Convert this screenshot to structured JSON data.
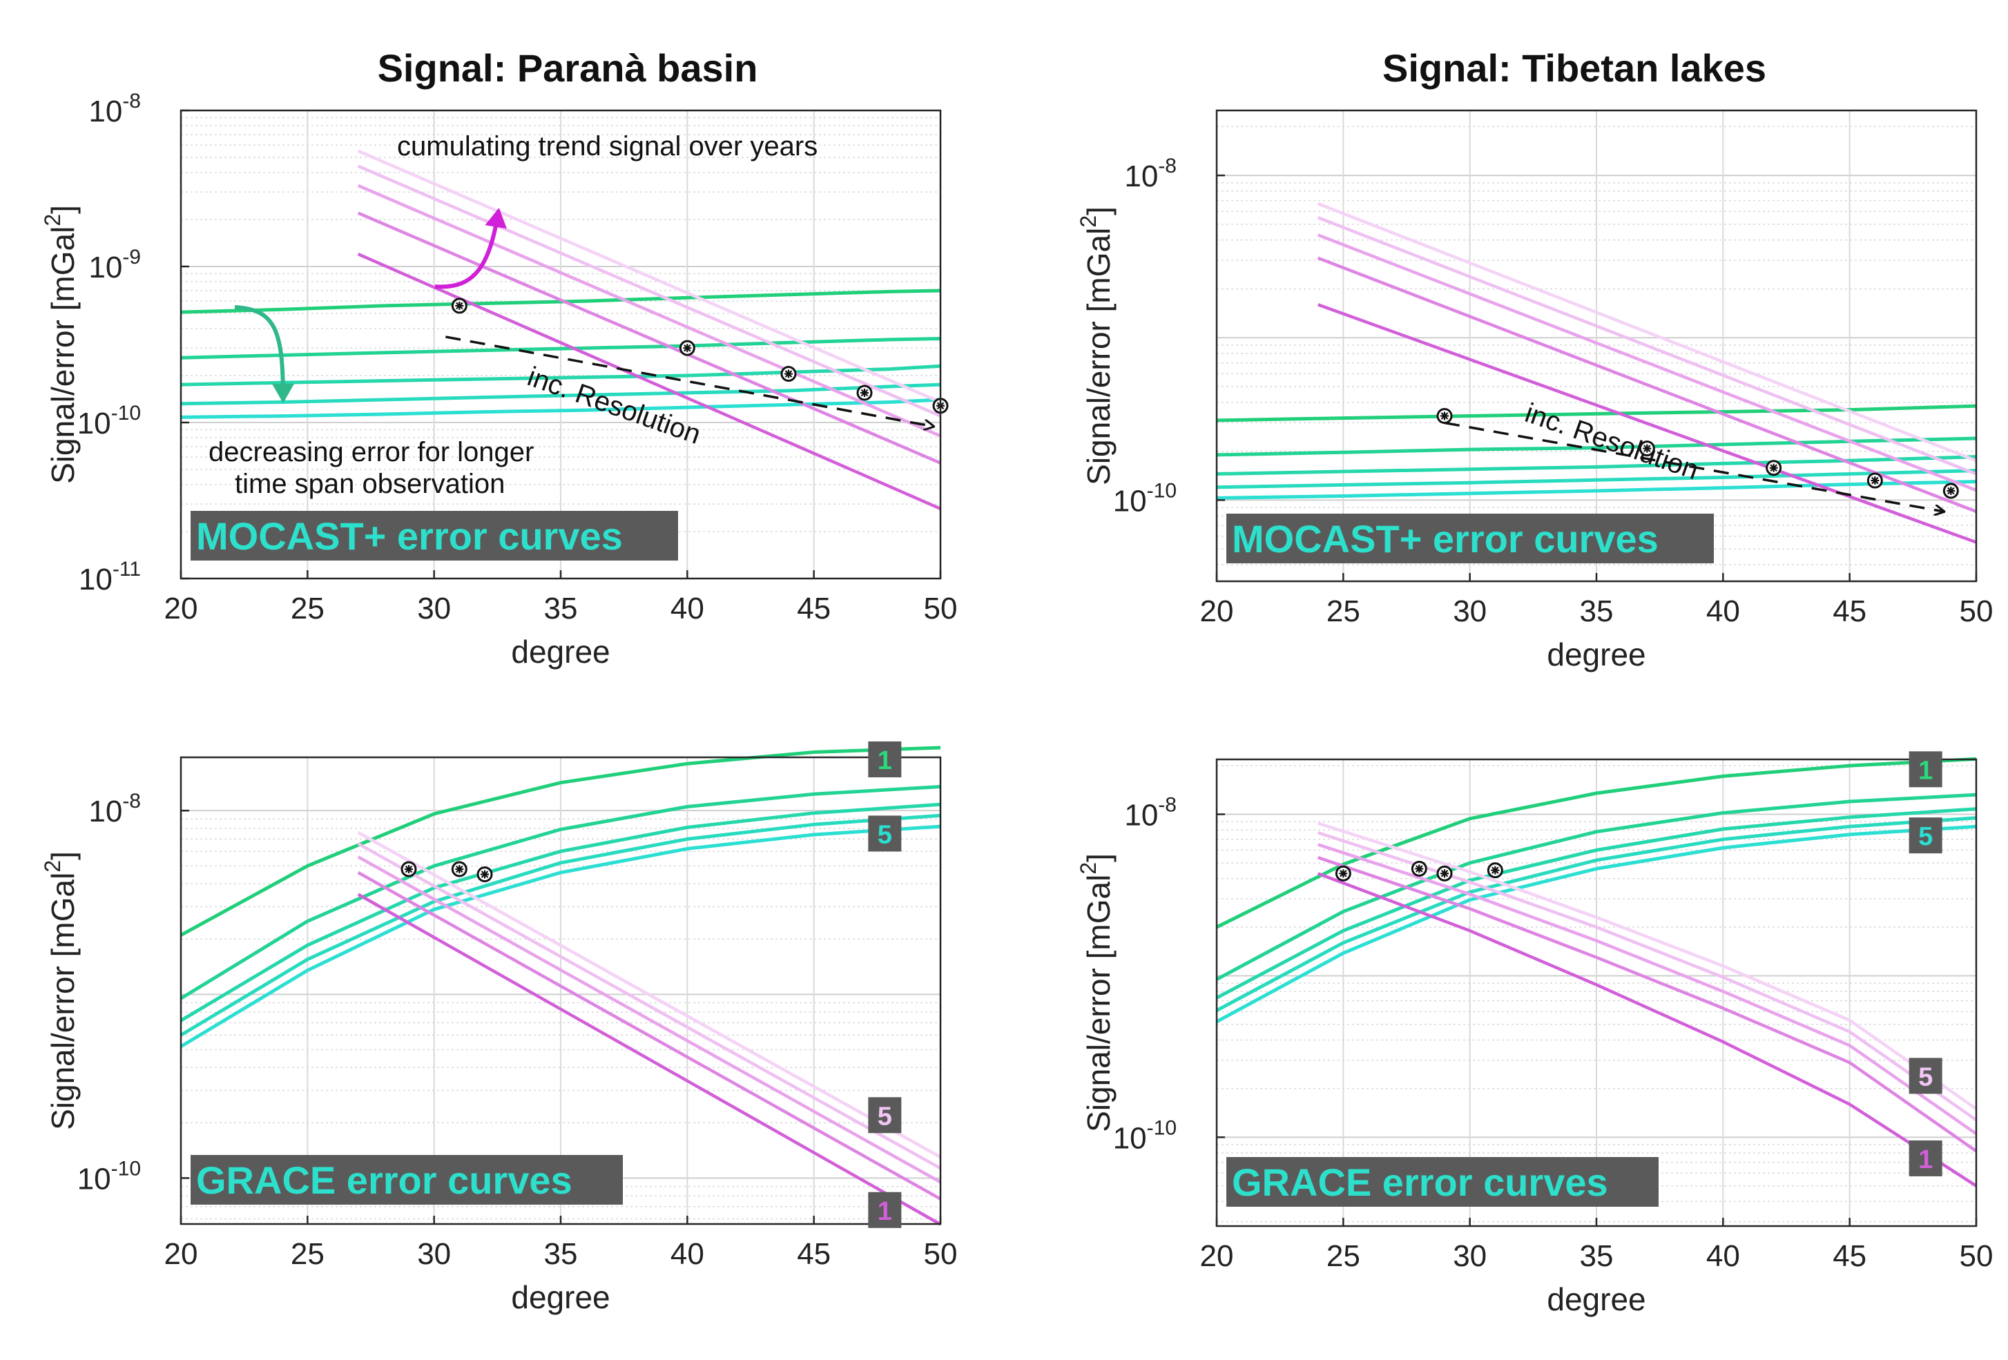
{
  "colors": {
    "signal": [
      "#d25fd9",
      "#de84e3",
      "#e8a3ec",
      "#efc0f2",
      "#f4d3f6"
    ],
    "error": [
      "#21cf7a",
      "#23d394",
      "#26d7ab",
      "#28dbbf",
      "#2bdfd2"
    ],
    "badge_bg": "#5a5a5a",
    "label_box_bg": "#5a5a5a",
    "label_box_text": "#2de0cc",
    "arrow_green": "#2fb88a",
    "arrow_magenta": "#d020d8"
  },
  "chart_data": [
    {
      "id": "mocast-parana",
      "type": "line",
      "title": "Signal: Paranà basin",
      "xlabel": "degree",
      "ylabel": "Signal/error [mGal",
      "ylabel_sup": "2",
      "ylabel_close": "]",
      "yscale": "log",
      "xlim": [
        20,
        50
      ],
      "ylim_exp": [
        -11,
        -8
      ],
      "xticks": [
        20,
        25,
        30,
        35,
        40,
        45,
        50
      ],
      "yticks": [
        {
          "base": "10",
          "exp": "-8"
        },
        {
          "base": "10",
          "exp": "-9"
        },
        {
          "base": "10",
          "exp": "-10"
        },
        {
          "base": "10",
          "exp": "-11"
        }
      ],
      "ytick_values": [
        1e-08,
        1e-09,
        1e-10,
        1e-11
      ],
      "box_label": "MOCAST+ error curves",
      "signal_series": [
        {
          "name": "signal 1",
          "x": [
            27,
            50
          ],
          "y": [
            1.2e-09,
            2.8e-11
          ]
        },
        {
          "name": "signal 2",
          "x": [
            27,
            50
          ],
          "y": [
            2.2e-09,
            5.5e-11
          ]
        },
        {
          "name": "signal 3",
          "x": [
            27,
            50
          ],
          "y": [
            3.3e-09,
            8.2e-11
          ]
        },
        {
          "name": "signal 4",
          "x": [
            27,
            50
          ],
          "y": [
            4.4e-09,
            1.1e-10
          ]
        },
        {
          "name": "signal 5",
          "x": [
            27,
            50
          ],
          "y": [
            5.5e-09,
            1.35e-10
          ]
        }
      ],
      "error_series": [
        {
          "name": "error 1",
          "x": [
            20,
            24,
            28,
            32,
            36,
            40,
            44,
            48,
            50
          ],
          "y": [
            5.1e-10,
            5.3e-10,
            5.6e-10,
            5.8e-10,
            6e-10,
            6.3e-10,
            6.6e-10,
            6.9e-10,
            7e-10
          ]
        },
        {
          "name": "error 2",
          "x": [
            20,
            24,
            28,
            32,
            36,
            40,
            44,
            48,
            50
          ],
          "y": [
            2.6e-10,
            2.7e-10,
            2.8e-10,
            2.9e-10,
            3e-10,
            3.1e-10,
            3.25e-10,
            3.4e-10,
            3.45e-10
          ]
        },
        {
          "name": "error 3",
          "x": [
            20,
            24,
            28,
            32,
            36,
            40,
            44,
            48,
            50
          ],
          "y": [
            1.75e-10,
            1.8e-10,
            1.85e-10,
            1.9e-10,
            1.95e-10,
            2e-10,
            2.1e-10,
            2.2e-10,
            2.3e-10
          ]
        },
        {
          "name": "error 4",
          "x": [
            20,
            24,
            28,
            32,
            36,
            40,
            44,
            48,
            50
          ],
          "y": [
            1.32e-10,
            1.35e-10,
            1.4e-10,
            1.45e-10,
            1.5e-10,
            1.55e-10,
            1.6e-10,
            1.7e-10,
            1.75e-10
          ]
        },
        {
          "name": "error 5",
          "x": [
            20,
            24,
            28,
            32,
            36,
            40,
            44,
            48,
            50
          ],
          "y": [
            1.08e-10,
            1.1e-10,
            1.13e-10,
            1.17e-10,
            1.2e-10,
            1.25e-10,
            1.3e-10,
            1.35e-10,
            1.4e-10
          ]
        }
      ],
      "markers": [
        {
          "x": 31,
          "y": 5.6e-10
        },
        {
          "x": 40,
          "y": 3e-10
        },
        {
          "x": 44,
          "y": 2.05e-10
        },
        {
          "x": 47,
          "y": 1.55e-10
        },
        {
          "x": 50,
          "y": 1.28e-10
        }
      ],
      "annotations": {
        "signal_note": "cumulating trend signal over years",
        "error_note_1": "decreasing error for longer",
        "error_note_2": "time span observation",
        "resolution_note": "inc. Resolution"
      }
    },
    {
      "id": "mocast-tibet",
      "type": "line",
      "title": "Signal: Tibetan lakes",
      "xlabel": "degree",
      "ylabel": "Signal/error [mGal",
      "ylabel_sup": "2",
      "ylabel_close": "]",
      "yscale": "log",
      "xlim": [
        20,
        50
      ],
      "ylim_exp": [
        -10.5,
        -7.6
      ],
      "xticks": [
        20,
        25,
        30,
        35,
        40,
        45,
        50
      ],
      "yticks": [
        {
          "base": "10",
          "exp": "-8"
        },
        {
          "base": "10",
          "exp": "-10"
        }
      ],
      "ytick_values": [
        1e-08,
        1e-10
      ],
      "box_label": "MOCAST+ error curves",
      "signal_series": [
        {
          "name": "signal 1",
          "x": [
            24,
            50
          ],
          "y": [
            1.6e-09,
            5.5e-11
          ]
        },
        {
          "name": "signal 2",
          "x": [
            24,
            50
          ],
          "y": [
            3.1e-09,
            8.5e-11
          ]
        },
        {
          "name": "signal 3",
          "x": [
            24,
            50
          ],
          "y": [
            4.3e-09,
            1.15e-10
          ]
        },
        {
          "name": "signal 4",
          "x": [
            24,
            50
          ],
          "y": [
            5.5e-09,
            1.45e-10
          ]
        },
        {
          "name": "signal 5",
          "x": [
            24,
            50
          ],
          "y": [
            6.7e-09,
            1.75e-10
          ]
        }
      ],
      "error_series": [
        {
          "name": "error 1",
          "x": [
            20,
            25,
            30,
            35,
            40,
            45,
            50
          ],
          "y": [
            3.1e-10,
            3.2e-10,
            3.3e-10,
            3.4e-10,
            3.5e-10,
            3.6e-10,
            3.8e-10
          ]
        },
        {
          "name": "error 2",
          "x": [
            20,
            25,
            30,
            35,
            40,
            45,
            50
          ],
          "y": [
            1.9e-10,
            1.97e-10,
            2.05e-10,
            2.1e-10,
            2.2e-10,
            2.3e-10,
            2.4e-10
          ]
        },
        {
          "name": "error 3",
          "x": [
            20,
            25,
            30,
            35,
            40,
            45,
            50
          ],
          "y": [
            1.45e-10,
            1.5e-10,
            1.55e-10,
            1.6e-10,
            1.68e-10,
            1.75e-10,
            1.85e-10
          ]
        },
        {
          "name": "error 4",
          "x": [
            20,
            25,
            30,
            35,
            40,
            45,
            50
          ],
          "y": [
            1.2e-10,
            1.24e-10,
            1.28e-10,
            1.33e-10,
            1.38e-10,
            1.45e-10,
            1.52e-10
          ]
        },
        {
          "name": "error 5",
          "x": [
            20,
            25,
            30,
            35,
            40,
            45,
            50
          ],
          "y": [
            1.03e-10,
            1.06e-10,
            1.1e-10,
            1.14e-10,
            1.19e-10,
            1.25e-10,
            1.3e-10
          ]
        }
      ],
      "markers": [
        {
          "x": 29,
          "y": 3.3e-10
        },
        {
          "x": 37,
          "y": 2.08e-10
        },
        {
          "x": 42,
          "y": 1.58e-10
        },
        {
          "x": 46,
          "y": 1.32e-10
        },
        {
          "x": 49,
          "y": 1.14e-10
        }
      ],
      "annotations": {
        "resolution_note": "inc. Resolution"
      }
    },
    {
      "id": "grace-parana",
      "type": "line",
      "title": "",
      "xlabel": "degree",
      "ylabel": "Signal/error [mGal",
      "ylabel_sup": "2",
      "ylabel_close": "]",
      "yscale": "log",
      "xlim": [
        20,
        50
      ],
      "ylim_exp": [
        -10.25,
        -7.71
      ],
      "xticks": [
        20,
        25,
        30,
        35,
        40,
        45,
        50
      ],
      "yticks": [
        {
          "base": "10",
          "exp": "-8"
        },
        {
          "base": "10",
          "exp": "-10"
        }
      ],
      "ytick_values": [
        1e-08,
        1e-10
      ],
      "box_label": "GRACE error curves",
      "signal_series": [
        {
          "name": "signal 1",
          "x": [
            27,
            50
          ],
          "y": [
            3.5e-09,
            5.6e-11
          ]
        },
        {
          "name": "signal 2",
          "x": [
            27,
            50
          ],
          "y": [
            4.6e-09,
            7.7e-11
          ]
        },
        {
          "name": "signal 3",
          "x": [
            27,
            50
          ],
          "y": [
            5.6e-09,
            9.5e-11
          ]
        },
        {
          "name": "signal 4",
          "x": [
            27,
            50
          ],
          "y": [
            6.6e-09,
            1.13e-10
          ]
        },
        {
          "name": "signal 5",
          "x": [
            27,
            50
          ],
          "y": [
            7.6e-09,
            1.3e-10
          ]
        }
      ],
      "error_series": [
        {
          "name": "error 1",
          "x": [
            20,
            25,
            30,
            35,
            40,
            45,
            50
          ],
          "y": [
            2.1e-09,
            5e-09,
            9.6e-09,
            1.42e-08,
            1.8e-08,
            2.08e-08,
            2.2e-08
          ]
        },
        {
          "name": "error 2",
          "x": [
            20,
            25,
            30,
            35,
            40,
            45,
            50
          ],
          "y": [
            9.5e-10,
            2.5e-09,
            5e-09,
            7.9e-09,
            1.05e-08,
            1.23e-08,
            1.35e-08
          ]
        },
        {
          "name": "error 3",
          "x": [
            20,
            25,
            30,
            35,
            40,
            45,
            50
          ],
          "y": [
            7.2e-10,
            1.85e-09,
            3.8e-09,
            6e-09,
            8.1e-09,
            9.7e-09,
            1.08e-08
          ]
        },
        {
          "name": "error 4",
          "x": [
            20,
            25,
            30,
            35,
            40,
            45,
            50
          ],
          "y": [
            6e-10,
            1.55e-09,
            3.2e-09,
            5.2e-09,
            7e-09,
            8.4e-09,
            9.4e-09
          ]
        },
        {
          "name": "error 5",
          "x": [
            20,
            25,
            30,
            35,
            40,
            45,
            50
          ],
          "y": [
            5.2e-10,
            1.35e-09,
            2.9e-09,
            4.6e-09,
            6.2e-09,
            7.4e-09,
            8.2e-09
          ]
        }
      ],
      "markers": [
        {
          "x": 29,
          "y": 4.8e-09
        },
        {
          "x": 31,
          "y": 4.8e-09
        },
        {
          "x": 32,
          "y": 4.5e-09
        }
      ],
      "badges": [
        {
          "text": "1",
          "x": 47.8,
          "y": 1.9e-08,
          "color": "#2bd97c"
        },
        {
          "text": "5",
          "x": 47.8,
          "y": 7.5e-09,
          "color": "#2bdfd2"
        },
        {
          "text": "5",
          "x": 47.8,
          "y": 2.2e-10,
          "color": "#f2c6f5"
        },
        {
          "text": "1",
          "x": 47.8,
          "y": 6.7e-11,
          "color": "#d25fd9"
        }
      ]
    },
    {
      "id": "grace-tibet",
      "type": "line",
      "title": "",
      "xlabel": "degree",
      "ylabel": "Signal/error [mGal",
      "ylabel_sup": "2",
      "ylabel_close": "]",
      "yscale": "log",
      "xlim": [
        20,
        50
      ],
      "ylim_exp": [
        -10.55,
        -7.66
      ],
      "xticks": [
        20,
        25,
        30,
        35,
        40,
        45,
        50
      ],
      "yticks": [
        {
          "base": "10",
          "exp": "-8"
        },
        {
          "base": "10",
          "exp": "-10"
        }
      ],
      "ytick_values": [
        1e-08,
        1e-10
      ],
      "box_label": "GRACE error curves",
      "signal_series": [
        {
          "name": "signal 1",
          "x": [
            24,
            30,
            35,
            40,
            45,
            50
          ],
          "y": [
            4.3e-09,
            1.9e-09,
            8.8e-10,
            3.9e-10,
            1.6e-10,
            5e-11
          ]
        },
        {
          "name": "signal 2",
          "x": [
            24,
            30,
            35,
            40,
            45,
            50
          ],
          "y": [
            5.4e-09,
            2.6e-09,
            1.3e-09,
            6.3e-10,
            2.9e-10,
            8.2e-11
          ]
        },
        {
          "name": "signal 3",
          "x": [
            24,
            30,
            35,
            40,
            45,
            50
          ],
          "y": [
            6.5e-09,
            3.2e-09,
            1.65e-09,
            8e-10,
            3.7e-10,
            1.05e-10
          ]
        },
        {
          "name": "signal 4",
          "x": [
            24,
            30,
            35,
            40,
            45,
            50
          ],
          "y": [
            7.7e-09,
            3.8e-09,
            2e-09,
            9.8e-10,
            4.5e-10,
            1.28e-10
          ]
        },
        {
          "name": "signal 5",
          "x": [
            24,
            30,
            35,
            40,
            45,
            50
          ],
          "y": [
            8.8e-09,
            4.4e-09,
            2.3e-09,
            1.15e-09,
            5.3e-10,
            1.5e-10
          ]
        }
      ],
      "error_series": [
        {
          "name": "error 1",
          "x": [
            20,
            25,
            30,
            35,
            40,
            45,
            50
          ],
          "y": [
            2e-09,
            4.9e-09,
            9.4e-09,
            1.35e-08,
            1.72e-08,
            2e-08,
            2.2e-08
          ]
        },
        {
          "name": "error 2",
          "x": [
            20,
            25,
            30,
            35,
            40,
            45,
            50
          ],
          "y": [
            9.5e-10,
            2.5e-09,
            5e-09,
            7.8e-09,
            1.02e-08,
            1.2e-08,
            1.32e-08
          ]
        },
        {
          "name": "error 3",
          "x": [
            20,
            25,
            30,
            35,
            40,
            45,
            50
          ],
          "y": [
            7.3e-10,
            1.9e-09,
            3.9e-09,
            6e-09,
            8.1e-09,
            9.6e-09,
            1.08e-08
          ]
        },
        {
          "name": "error 4",
          "x": [
            20,
            25,
            30,
            35,
            40,
            45,
            50
          ],
          "y": [
            6.1e-10,
            1.6e-09,
            3.3e-09,
            5.2e-09,
            7e-09,
            8.4e-09,
            9.5e-09
          ]
        },
        {
          "name": "error 5",
          "x": [
            20,
            25,
            30,
            35,
            40,
            45,
            50
          ],
          "y": [
            5.2e-10,
            1.38e-09,
            2.95e-09,
            4.6e-09,
            6.2e-09,
            7.5e-09,
            8.4e-09
          ]
        }
      ],
      "markers": [
        {
          "x": 25,
          "y": 4.3e-09
        },
        {
          "x": 28,
          "y": 4.6e-09
        },
        {
          "x": 29,
          "y": 4.3e-09
        },
        {
          "x": 31,
          "y": 4.5e-09
        }
      ],
      "badges": [
        {
          "text": "1",
          "x": 48,
          "y": 1.9e-08,
          "color": "#2bd97c"
        },
        {
          "text": "5",
          "x": 48,
          "y": 7.4e-09,
          "color": "#2bdfd2"
        },
        {
          "text": "5",
          "x": 48,
          "y": 2.4e-10,
          "color": "#f2c6f5"
        },
        {
          "text": "1",
          "x": 48,
          "y": 7.4e-11,
          "color": "#d25fd9"
        }
      ]
    }
  ]
}
